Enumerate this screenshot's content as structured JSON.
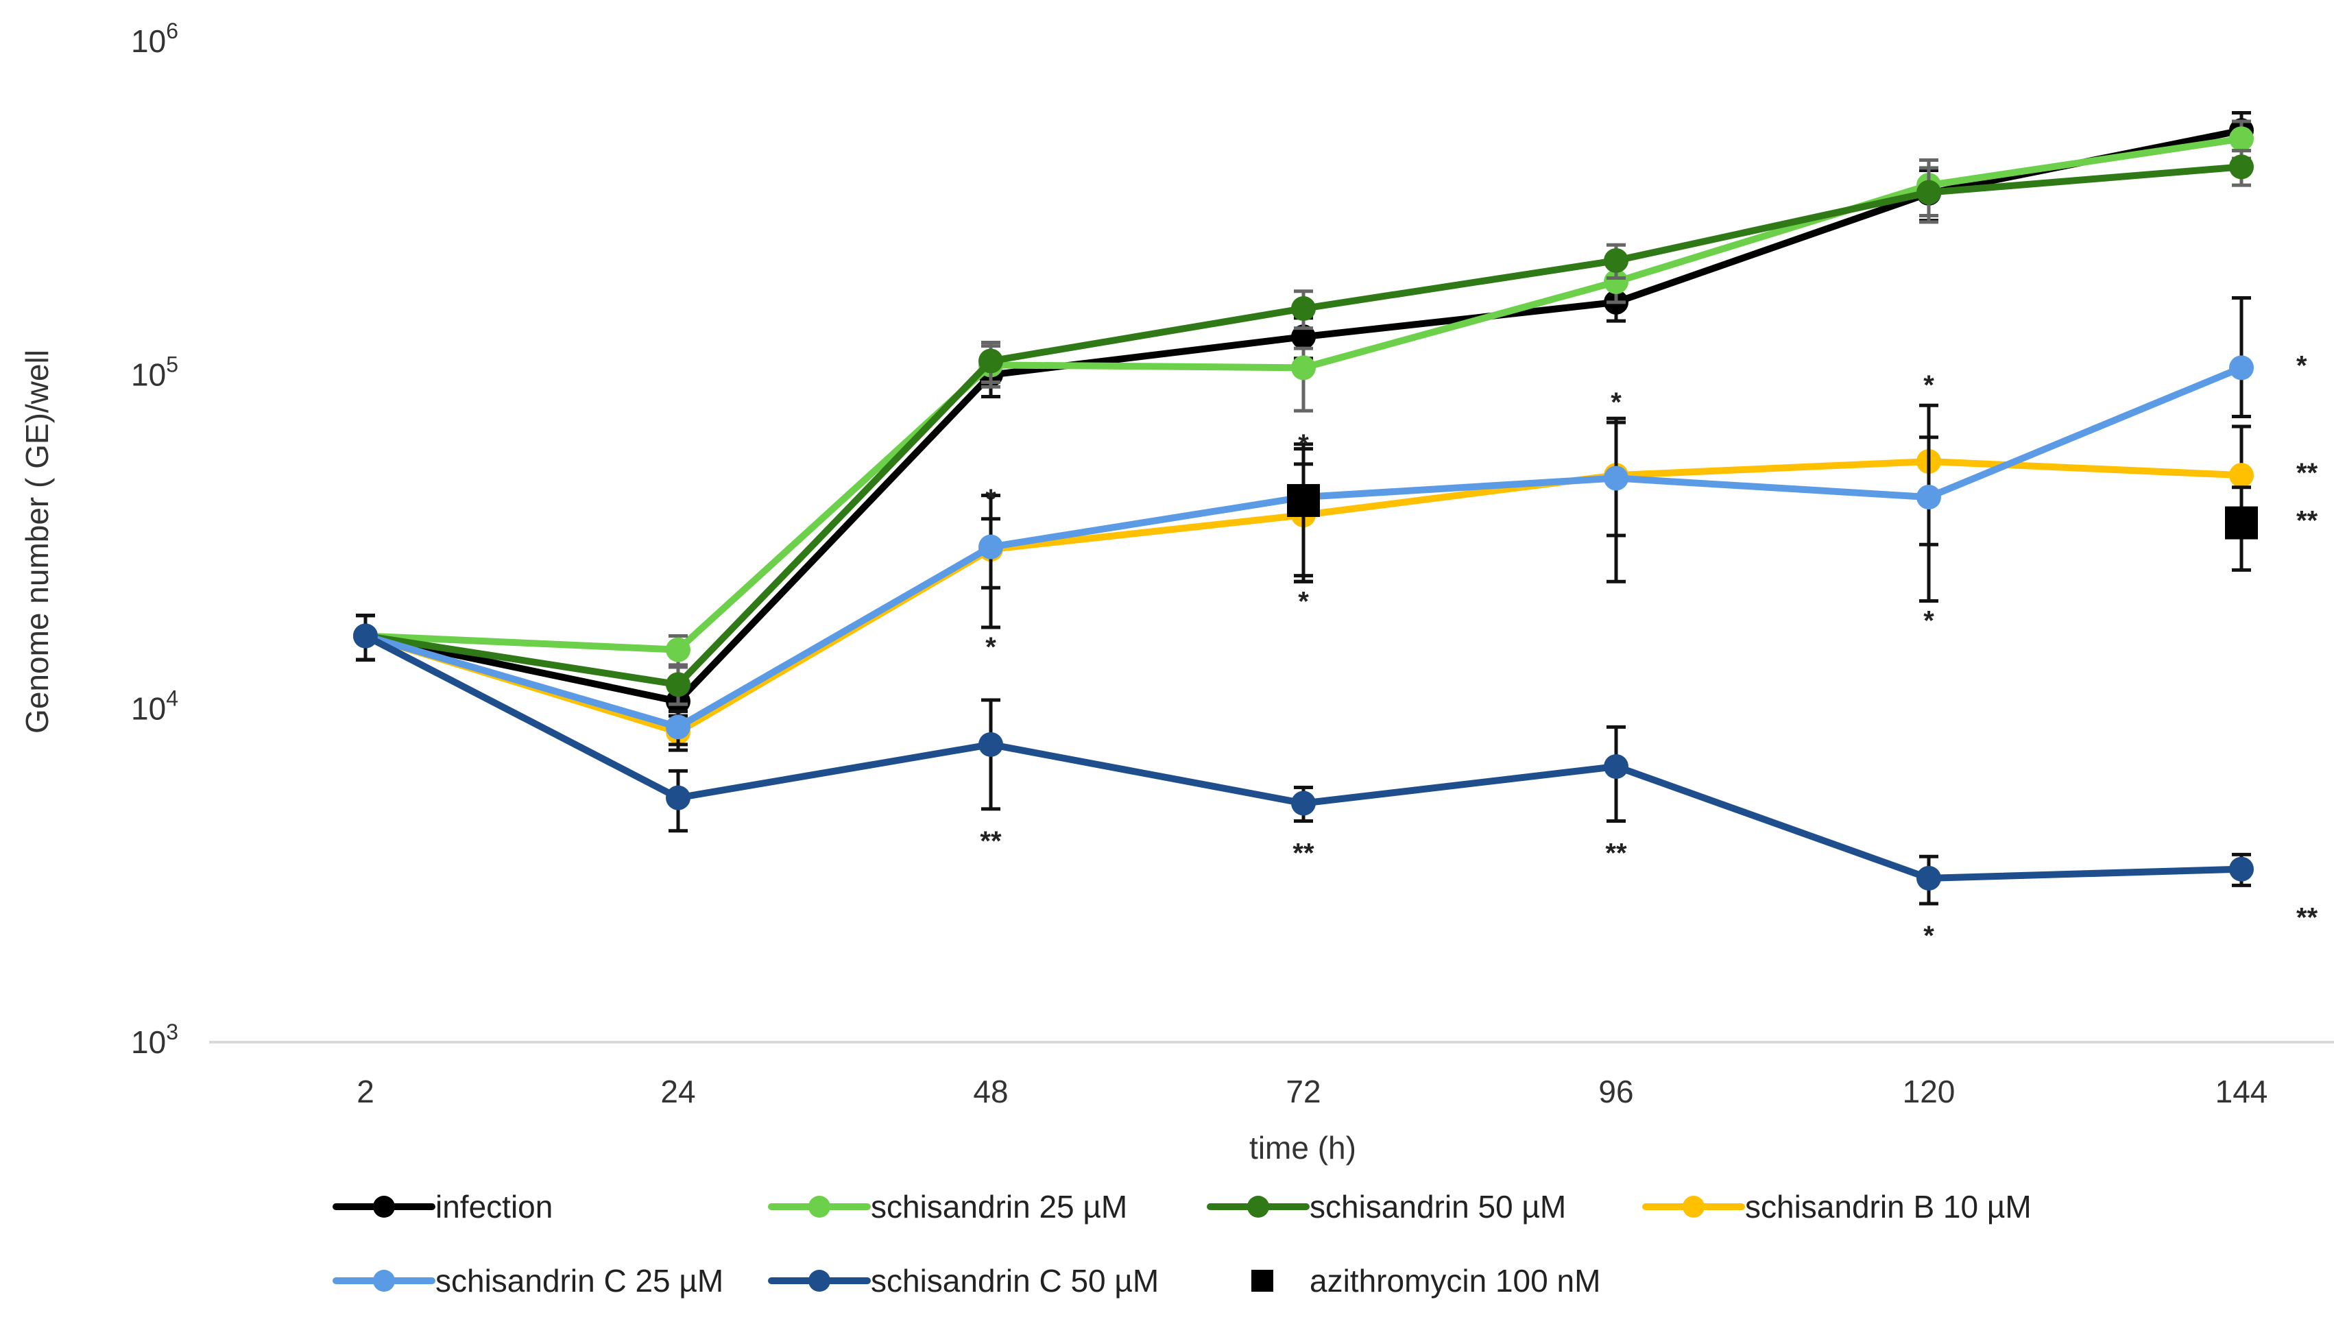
{
  "chart_data": {
    "type": "line",
    "title": "",
    "xlabel": "time (h)",
    "ylabel": "Genome number ( GE)/well",
    "yscale": "log",
    "ylim": [
      1000,
      1000000
    ],
    "y_ticks": [
      {
        "value": 1000,
        "base": "10",
        "exp": "3"
      },
      {
        "value": 10000,
        "base": "10",
        "exp": "4"
      },
      {
        "value": 100000,
        "base": "10",
        "exp": "5"
      },
      {
        "value": 1000000,
        "base": "10",
        "exp": "6"
      }
    ],
    "categories": [
      "2",
      "24",
      "48",
      "72",
      "96",
      "120",
      "144"
    ],
    "series": [
      {
        "name": "infection",
        "color": "#000000",
        "values": [
          16500,
          10500,
          100000,
          130000,
          165000,
          350000,
          540000
        ],
        "err_lo": [
          2500,
          1500,
          14000,
          18000,
          20000,
          60000,
          70000
        ],
        "err_hi": [
          2500,
          1500,
          14000,
          18000,
          20000,
          60000,
          70000
        ]
      },
      {
        "name": "schisandrin 25 µM",
        "color": "#6DD04A",
        "values": [
          16500,
          15000,
          107000,
          105000,
          190000,
          370000,
          510000
        ],
        "err_lo": [
          2500,
          1500,
          15000,
          27000,
          25000,
          70000,
          65000
        ],
        "err_hi": [
          2500,
          1500,
          15000,
          15000,
          25000,
          70000,
          65000
        ]
      },
      {
        "name": "schisandrin 50 µM",
        "color": "#2F7A17",
        "values": [
          16500,
          11800,
          110000,
          158000,
          220000,
          352000,
          420000
        ],
        "err_lo": [
          2500,
          1500,
          15000,
          20000,
          25000,
          65000,
          50000
        ],
        "err_hi": [
          2500,
          1500,
          15000,
          20000,
          25000,
          65000,
          50000
        ]
      },
      {
        "name": "schisandrin B 10 µM",
        "color": "#FFC000",
        "values": [
          16500,
          8500,
          30000,
          38000,
          50000,
          55000,
          50000
        ],
        "err_lo": [
          2500,
          1000,
          7000,
          13000,
          17000,
          24000,
          14000
        ],
        "err_hi": [
          2500,
          1000,
          7000,
          16000,
          22000,
          26000,
          20000
        ],
        "stars": [
          "",
          "",
          "*",
          "*",
          "*",
          "*",
          "**"
        ]
      },
      {
        "name": "schisandrin C 25 µM",
        "color": "#5B9BE6",
        "values": [
          16500,
          8800,
          30500,
          43000,
          49000,
          43000,
          105000
        ],
        "err_lo": [
          2500,
          1000,
          13000,
          19000,
          25000,
          22000,
          30000
        ],
        "err_hi": [
          2500,
          1000,
          13000,
          19000,
          25000,
          22000,
          65000
        ],
        "stars": [
          "",
          "",
          "*",
          "*",
          "",
          "*",
          "*"
        ]
      },
      {
        "name": "schisandrin C 50 µM",
        "color": "#1F4E8C",
        "values": [
          16500,
          5400,
          7800,
          5200,
          6700,
          3100,
          3300
        ],
        "err_lo": [
          2500,
          1100,
          2800,
          600,
          2100,
          500,
          350
        ],
        "err_hi": [
          2500,
          1100,
          2800,
          600,
          2100,
          500,
          350
        ],
        "stars": [
          "",
          "",
          "**",
          "**",
          "**",
          "*",
          "**"
        ]
      },
      {
        "name": "azithromycin 100 nM",
        "color": "#000000",
        "marker": "square",
        "line": false,
        "values": [
          null,
          null,
          null,
          42000,
          null,
          null,
          36000
        ],
        "err_lo": [
          null,
          null,
          null,
          18000,
          null,
          null,
          10000
        ],
        "err_hi": [
          null,
          null,
          null,
          18000,
          null,
          null,
          10000
        ],
        "stars": [
          "",
          "",
          "",
          "",
          "",
          "",
          "**"
        ]
      }
    ],
    "legend_position": "bottom"
  }
}
